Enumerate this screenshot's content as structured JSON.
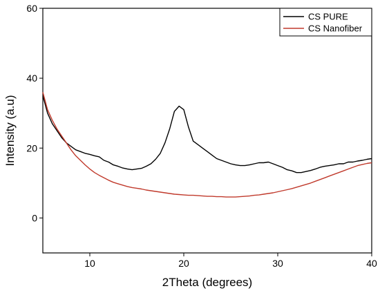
{
  "chart_data": {
    "type": "line",
    "title": "",
    "xlabel": "2Theta (degrees)",
    "ylabel": "Intensity (a.u)",
    "xlim": [
      5,
      40
    ],
    "ylim": [
      -10,
      60
    ],
    "xticks": [
      10,
      20,
      30,
      40
    ],
    "yticks": [
      0,
      20,
      40,
      60
    ],
    "grid": false,
    "legend": "top-right",
    "series": [
      {
        "name": "CS PURE",
        "color": "#000000",
        "x": [
          5,
          5.5,
          6,
          6.5,
          7,
          7.5,
          8,
          8.5,
          9,
          9.5,
          10,
          10.5,
          11,
          11.5,
          12,
          12.5,
          13,
          13.5,
          14,
          14.5,
          15,
          15.5,
          16,
          16.5,
          17,
          17.5,
          18,
          18.5,
          19,
          19.5,
          20,
          20.5,
          21,
          21.5,
          22,
          22.5,
          23,
          23.5,
          24,
          24.5,
          25,
          25.5,
          26,
          26.5,
          27,
          27.5,
          28,
          28.5,
          29,
          29.5,
          30,
          30.5,
          31,
          31.5,
          32,
          32.5,
          33,
          33.5,
          34,
          34.5,
          35,
          35.5,
          36,
          36.5,
          37,
          37.5,
          38,
          38.5,
          39,
          39.5,
          40
        ],
        "y": [
          35,
          30,
          27,
          25,
          23,
          21.5,
          20.5,
          19.5,
          19,
          18.5,
          18.2,
          17.8,
          17.5,
          16.5,
          16,
          15.2,
          14.8,
          14.3,
          14,
          13.8,
          14,
          14.2,
          14.8,
          15.5,
          16.8,
          18.5,
          21.5,
          25.5,
          30.5,
          32,
          31,
          26,
          22,
          21,
          20,
          19,
          18,
          17,
          16.5,
          16,
          15.5,
          15.2,
          15,
          15,
          15.2,
          15.5,
          15.8,
          15.8,
          16,
          15.5,
          15,
          14.5,
          13.8,
          13.5,
          13,
          13,
          13.3,
          13.6,
          14,
          14.5,
          14.8,
          15,
          15.2,
          15.5,
          15.5,
          16,
          16,
          16.3,
          16.5,
          16.8,
          17
        ]
      },
      {
        "name": "CS Nanofiber",
        "color": "#c0392b",
        "x": [
          5,
          5.5,
          6,
          6.5,
          7,
          7.5,
          8,
          8.5,
          9,
          9.5,
          10,
          10.5,
          11,
          11.5,
          12,
          12.5,
          13,
          13.5,
          14,
          14.5,
          15,
          15.5,
          16,
          16.5,
          17,
          17.5,
          18,
          18.5,
          19,
          19.5,
          20,
          20.5,
          21,
          21.5,
          22,
          22.5,
          23,
          23.5,
          24,
          24.5,
          25,
          25.5,
          26,
          26.5,
          27,
          27.5,
          28,
          28.5,
          29,
          29.5,
          30,
          30.5,
          31,
          31.5,
          32,
          32.5,
          33,
          33.5,
          34,
          34.5,
          35,
          35.5,
          36,
          36.5,
          37,
          37.5,
          38,
          38.5,
          39,
          39.5,
          40
        ],
        "y": [
          36,
          31,
          28,
          25.5,
          23.5,
          21.5,
          19.5,
          17.8,
          16.5,
          15.2,
          14,
          13,
          12.2,
          11.5,
          10.8,
          10.2,
          9.8,
          9.4,
          9,
          8.7,
          8.5,
          8.3,
          8,
          7.8,
          7.6,
          7.4,
          7.2,
          7,
          6.8,
          6.7,
          6.6,
          6.5,
          6.5,
          6.4,
          6.3,
          6.2,
          6.2,
          6.1,
          6.1,
          6,
          6,
          6,
          6.1,
          6.2,
          6.3,
          6.5,
          6.6,
          6.8,
          7,
          7.2,
          7.5,
          7.8,
          8.1,
          8.4,
          8.8,
          9.2,
          9.6,
          10,
          10.5,
          11,
          11.5,
          12,
          12.5,
          13,
          13.5,
          14,
          14.5,
          15,
          15.3,
          15.6,
          15.8
        ]
      }
    ]
  }
}
